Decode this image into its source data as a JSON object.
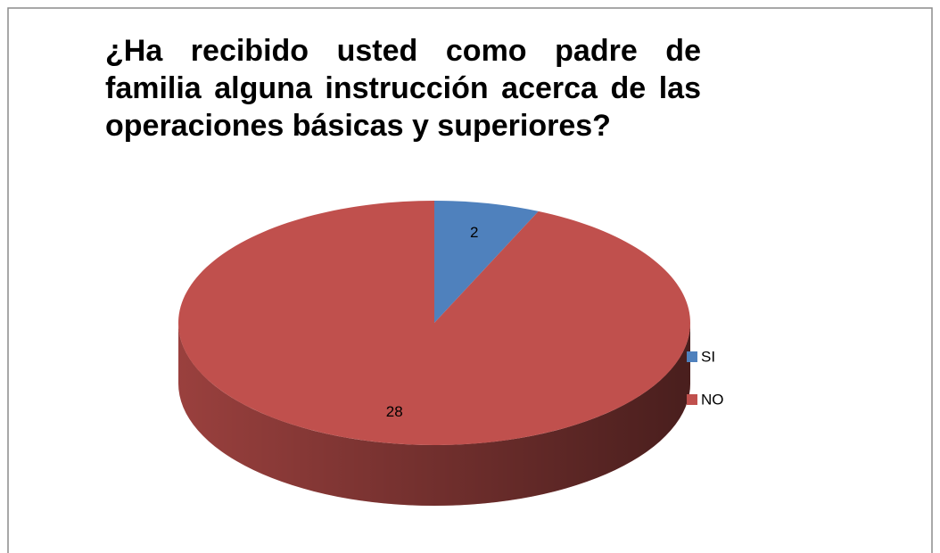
{
  "chart_data": {
    "type": "pie",
    "title": "¿Ha recibido usted como padre de familia alguna instrucción acerca de las operaciones básicas y superiores?",
    "categories": [
      "SI",
      "NO"
    ],
    "values": [
      2,
      28
    ],
    "colors": [
      "#4f81bd",
      "#c0504d"
    ],
    "legend": "right"
  }
}
